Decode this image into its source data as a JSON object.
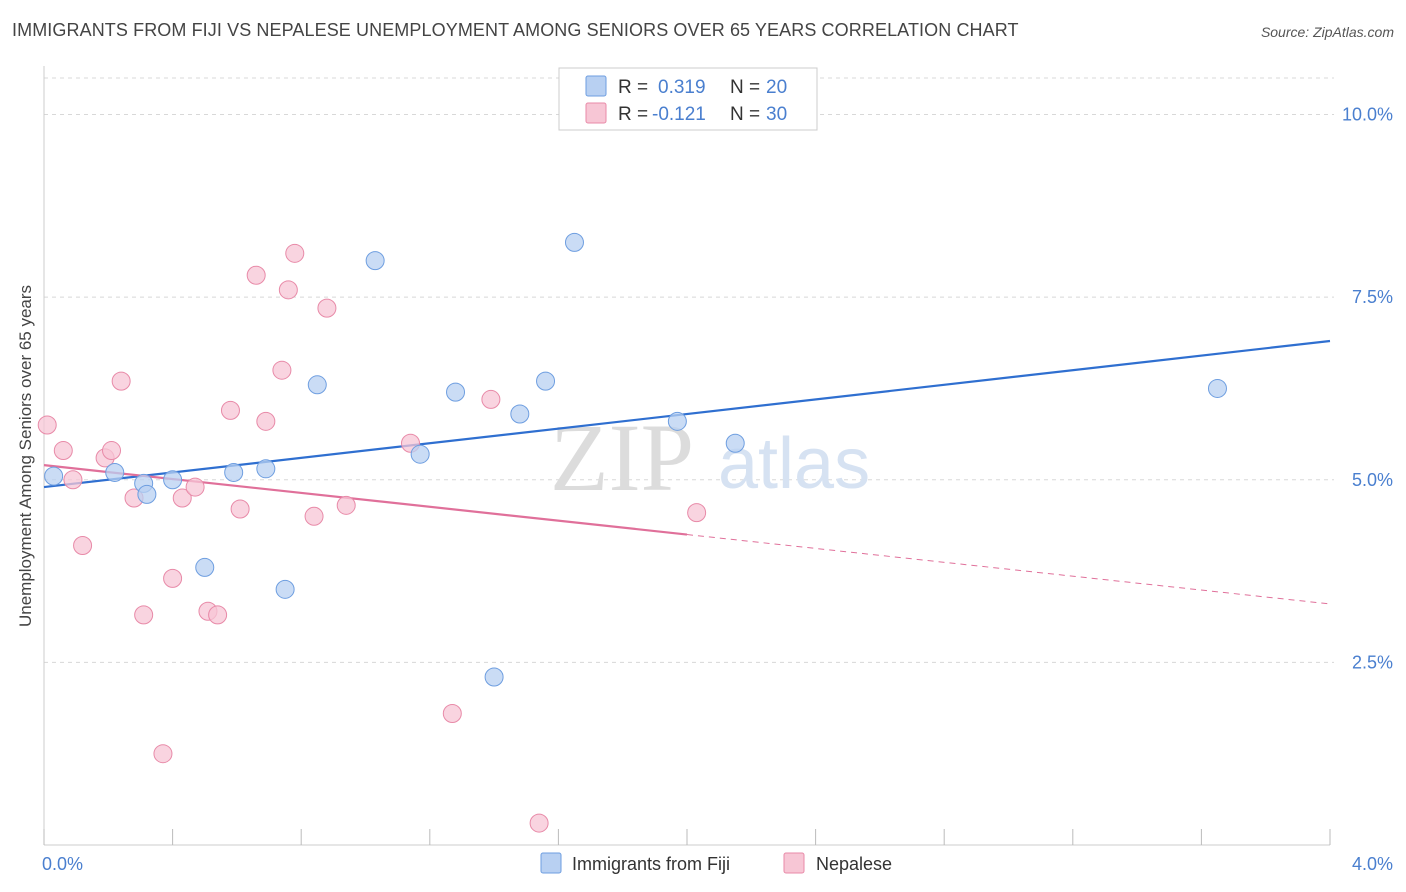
{
  "title": "IMMIGRANTS FROM FIJI VS NEPALESE UNEMPLOYMENT AMONG SENIORS OVER 65 YEARS CORRELATION CHART",
  "source": "Source: ZipAtlas.com",
  "watermark": {
    "zip": "ZIP",
    "atlas": "atlas"
  },
  "colors": {
    "fiji_fill": "#b8d0f2",
    "fiji_stroke": "#6e9ee0",
    "fiji_line": "#2f6fd0",
    "nepal_fill": "#f7c6d5",
    "nepal_stroke": "#e88aa8",
    "nepal_line": "#e0709a",
    "tick_label": "#4a7fcf",
    "grid": "#d8d8d8"
  },
  "legend": {
    "rows": [
      {
        "r_label": "R =",
        "r_value": "0.319",
        "n_label": "N =",
        "n_value": "20"
      },
      {
        "r_label": "R =",
        "r_value": "-0.121",
        "n_label": "N =",
        "n_value": "30"
      }
    ]
  },
  "chart_data": {
    "type": "scatter",
    "title": "IMMIGRANTS FROM FIJI VS NEPALESE UNEMPLOYMENT AMONG SENIORS OVER 65 YEARS CORRELATION CHART",
    "xlabel": "",
    "ylabel": "Unemployment Among Seniors over 65 years",
    "xlim": [
      0,
      4.0
    ],
    "ylim": [
      0,
      10.5
    ],
    "x_tick_labels": [
      "0.0%",
      "4.0%"
    ],
    "y_ticks": [
      2.5,
      5.0,
      7.5,
      10.0
    ],
    "y_tick_labels": [
      "2.5%",
      "5.0%",
      "7.5%",
      "10.0%"
    ],
    "grid": true,
    "legend_position": "top-center",
    "series": [
      {
        "name": "Immigrants from Fiji",
        "points": [
          [
            0.03,
            5.05
          ],
          [
            0.22,
            5.1
          ],
          [
            0.31,
            4.95
          ],
          [
            0.32,
            4.8
          ],
          [
            0.4,
            5.0
          ],
          [
            0.5,
            3.8
          ],
          [
            0.59,
            5.1
          ],
          [
            0.69,
            5.15
          ],
          [
            0.75,
            3.5
          ],
          [
            0.85,
            6.3
          ],
          [
            1.03,
            8.0
          ],
          [
            1.17,
            5.35
          ],
          [
            1.28,
            6.2
          ],
          [
            1.4,
            2.3
          ],
          [
            1.48,
            5.9
          ],
          [
            1.56,
            6.35
          ],
          [
            1.65,
            8.25
          ],
          [
            1.97,
            5.8
          ],
          [
            2.15,
            5.5
          ],
          [
            3.65,
            6.25
          ]
        ],
        "trend": {
          "x0": 0.0,
          "y0": 4.9,
          "x1": 4.0,
          "y1": 6.9
        }
      },
      {
        "name": "Nepalese",
        "points": [
          [
            0.01,
            5.75
          ],
          [
            0.06,
            5.4
          ],
          [
            0.09,
            5.0
          ],
          [
            0.12,
            4.1
          ],
          [
            0.19,
            5.3
          ],
          [
            0.21,
            5.4
          ],
          [
            0.24,
            6.35
          ],
          [
            0.28,
            4.75
          ],
          [
            0.31,
            3.15
          ],
          [
            0.37,
            1.25
          ],
          [
            0.4,
            3.65
          ],
          [
            0.43,
            4.75
          ],
          [
            0.47,
            4.9
          ],
          [
            0.51,
            3.2
          ],
          [
            0.54,
            3.15
          ],
          [
            0.58,
            5.95
          ],
          [
            0.61,
            4.6
          ],
          [
            0.66,
            7.8
          ],
          [
            0.69,
            5.8
          ],
          [
            0.74,
            6.5
          ],
          [
            0.76,
            7.6
          ],
          [
            0.78,
            8.1
          ],
          [
            0.84,
            4.5
          ],
          [
            0.88,
            7.35
          ],
          [
            0.94,
            4.65
          ],
          [
            1.14,
            5.5
          ],
          [
            1.27,
            1.8
          ],
          [
            1.39,
            6.1
          ],
          [
            1.54,
            0.3
          ],
          [
            2.03,
            4.55
          ]
        ],
        "trend": {
          "x0": 0.0,
          "y0": 5.2,
          "x1": 2.0,
          "y1": 4.25,
          "dash_x1": 4.0,
          "dash_y1": 3.3
        }
      }
    ]
  }
}
